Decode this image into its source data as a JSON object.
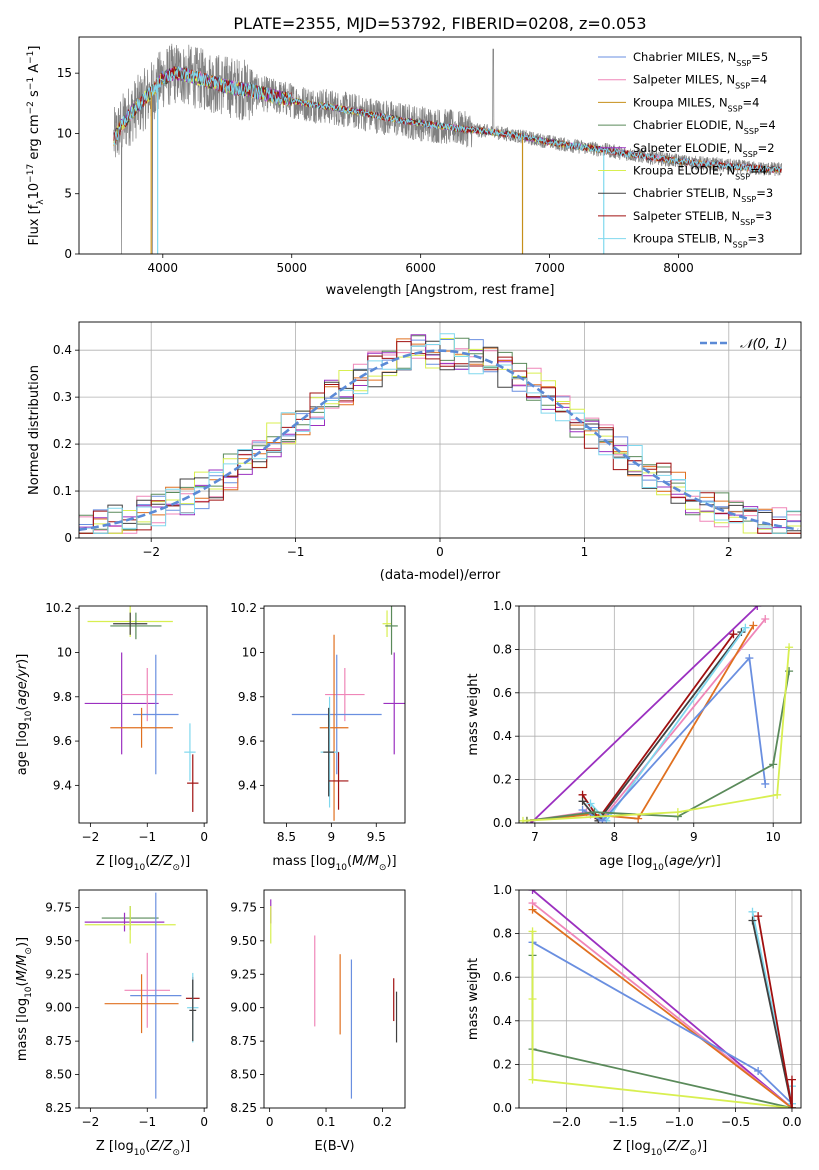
{
  "figure": {
    "title": "PLATE=2355, MJD=53792, FIBERID=0208, z=0.053"
  },
  "colors": {
    "Chabrier MILES": "#6a8fe0",
    "Salpeter MILES": "#ef86b8",
    "Kroupa MILES": "#c68f1a",
    "Chabrier ELODIE": "#5a8a5a",
    "Salpeter ELODIE": "#9b30c0",
    "Kroupa ELODIE": "#d8ef50",
    "Chabrier STELIB": "#404040",
    "Salpeter STELIB": "#a01010",
    "Kroupa STELIB": "#80d8ee",
    "orange": "#e07020",
    "data": "#808080",
    "gaussian": "#5b8ad6"
  },
  "chart_data": [
    {
      "id": "spectrum",
      "type": "line",
      "xlabel": "wavelength [Angstrom, rest frame]",
      "xlim": [
        3350,
        8950
      ],
      "ylim": [
        0,
        18
      ],
      "xticks": [
        4000,
        5000,
        6000,
        7000,
        8000
      ],
      "yticks": [
        0,
        5,
        10,
        15
      ],
      "legend_position": "top-right",
      "legend": [
        {
          "label": "Chabrier MILES, N",
          "sub": "SSP",
          "tail": "=5",
          "color": "#6a8fe0"
        },
        {
          "label": "Salpeter MILES, N",
          "sub": "SSP",
          "tail": "=4",
          "color": "#ef86b8"
        },
        {
          "label": "Kroupa MILES, N",
          "sub": "SSP",
          "tail": "=4",
          "color": "#c68f1a"
        },
        {
          "label": "Chabrier ELODIE, N",
          "sub": "SSP",
          "tail": "=4",
          "color": "#5a8a5a"
        },
        {
          "label": "Salpeter ELODIE, N",
          "sub": "SSP",
          "tail": "=2",
          "color": "#9b30c0"
        },
        {
          "label": "Kroupa ELODIE, N",
          "sub": "SSP",
          "tail": "=4",
          "color": "#d8ef50"
        },
        {
          "label": "Chabrier STELIB, N",
          "sub": "SSP",
          "tail": "=3",
          "color": "#404040"
        },
        {
          "label": "Salpeter STELIB, N",
          "sub": "SSP",
          "tail": "=3",
          "color": "#a01010"
        },
        {
          "label": "Kroupa STELIB, N",
          "sub": "SSP",
          "tail": "=3",
          "color": "#80d8ee"
        }
      ],
      "continuum": {
        "x": [
          3620,
          3700,
          3800,
          3900,
          4000,
          4100,
          4200,
          4300,
          4400,
          4500,
          4700,
          4900,
          5100,
          5300,
          5500,
          5700,
          5900,
          6100,
          6300,
          6500,
          6700,
          6900,
          7100,
          7300,
          7450,
          7600,
          7800,
          8000,
          8200,
          8400,
          8600,
          8800
        ],
        "y": [
          9.5,
          11.0,
          12.2,
          13.3,
          14.6,
          15.0,
          14.8,
          14.5,
          14.2,
          13.9,
          13.5,
          13.0,
          12.5,
          12.2,
          11.8,
          11.4,
          11.0,
          10.7,
          10.4,
          10.2,
          9.9,
          9.5,
          9.1,
          8.8,
          8.6,
          8.3,
          8.0,
          7.7,
          7.5,
          7.3,
          7.1,
          7.0
        ]
      },
      "model_drops": [
        {
          "x": 3910,
          "color": "#c68f1a"
        },
        {
          "x": 3960,
          "color": "#80d8ee"
        },
        {
          "x": 6790,
          "color": "#c68f1a"
        },
        {
          "x": 7420,
          "color": "#80d8ee"
        }
      ],
      "data_drops_x": [
        3680,
        3920
      ]
    },
    {
      "id": "residuals",
      "type": "line",
      "xlabel": "(data-model)/error",
      "ylabel": "Normed distribution",
      "xlim": [
        -2.5,
        2.5
      ],
      "ylim": [
        0,
        0.46
      ],
      "xticks": [
        -2,
        -1,
        0,
        1,
        2
      ],
      "yticks": [
        0.0,
        0.1,
        0.2,
        0.3,
        0.4
      ],
      "grid": true,
      "legend_position": "top-right",
      "legend_label": "N(0, 1)",
      "gaussian": {
        "mean": 0,
        "sigma": 1,
        "style": "dashed"
      },
      "bin_width": 0.1
    },
    {
      "id": "z-age",
      "type": "scatter",
      "xlabel": "Z [log10(Z/Z☉)]",
      "ylabel": "age [log10(age/yr)]",
      "xlim": [
        -2.2,
        0.05
      ],
      "ylim": [
        9.23,
        10.21
      ],
      "xticks": [
        -2,
        -1,
        0
      ],
      "yticks": [
        9.4,
        9.6,
        9.8,
        10.0,
        10.2
      ],
      "points": [
        {
          "x": -1.3,
          "y": 10.14,
          "xerr": 0.75,
          "yerr": 0.07,
          "color": "#d8ef50"
        },
        {
          "x": -1.2,
          "y": 10.12,
          "xerr": 0.45,
          "yerr": 0.06,
          "color": "#5a8a5a"
        },
        {
          "x": -1.3,
          "y": 10.13,
          "xerr": 0.3,
          "yerr": 0.05,
          "color": "#404040"
        },
        {
          "x": -1.45,
          "y": 9.77,
          "xerr": 0.65,
          "yerr": 0.23,
          "color": "#9b30c0"
        },
        {
          "x": -1.0,
          "y": 9.81,
          "xerr": 0.45,
          "yerr": 0.12,
          "color": "#ef86b8"
        },
        {
          "x": -0.85,
          "y": 9.72,
          "xerr": 0.4,
          "yerr": 0.27,
          "color": "#6a8fe0"
        },
        {
          "x": -1.1,
          "y": 9.66,
          "xerr": 0.55,
          "yerr": 0.09,
          "color": "#e07020"
        },
        {
          "x": -0.25,
          "y": 9.55,
          "xerr": 0.1,
          "yerr": 0.13,
          "color": "#80d8ee"
        },
        {
          "x": -0.2,
          "y": 9.41,
          "xerr": 0.1,
          "yerr": 0.13,
          "color": "#a01010"
        }
      ]
    },
    {
      "id": "mass-age",
      "type": "scatter",
      "xlabel": "mass [log10(M/M☉)]",
      "xlim": [
        8.25,
        9.82
      ],
      "ylim": [
        9.23,
        10.21
      ],
      "xticks": [
        8.5,
        9.0,
        9.5
      ],
      "yticks": [
        9.4,
        9.6,
        9.8,
        10.0,
        10.2
      ],
      "points": [
        {
          "x": 9.62,
          "y": 10.13,
          "xerr": 0.05,
          "yerr": 0.06,
          "color": "#d8ef50"
        },
        {
          "x": 9.67,
          "y": 10.12,
          "xerr": 0.07,
          "yerr": 0.13,
          "color": "#5a8a5a"
        },
        {
          "x": 9.7,
          "y": 9.77,
          "xerr": 0.12,
          "yerr": 0.23,
          "color": "#9b30c0"
        },
        {
          "x": 9.15,
          "y": 9.81,
          "xerr": 0.22,
          "yerr": 0.12,
          "color": "#ef86b8"
        },
        {
          "x": 9.06,
          "y": 9.72,
          "xerr": 0.5,
          "yerr": 0.27,
          "color": "#6a8fe0"
        },
        {
          "x": 9.03,
          "y": 9.66,
          "xerr": 0.16,
          "yerr": 0.42,
          "color": "#e07020"
        },
        {
          "x": 8.98,
          "y": 9.55,
          "xerr": 0.1,
          "yerr": 0.25,
          "color": "#80d8ee"
        },
        {
          "x": 9.08,
          "y": 9.42,
          "xerr": 0.11,
          "yerr": 0.13,
          "color": "#a01010"
        },
        {
          "x": 8.97,
          "y": 9.55,
          "xerr": 0.06,
          "yerr": 0.2,
          "color": "#404040"
        }
      ]
    },
    {
      "id": "age-weight",
      "type": "line",
      "xlabel": "age [log10(age/yr)]",
      "ylabel": "mass weight",
      "xlim": [
        6.8,
        10.35
      ],
      "ylim": [
        0,
        1
      ],
      "xticks": [
        7,
        8,
        9,
        10
      ],
      "yticks": [
        0.0,
        0.2,
        0.4,
        0.6,
        0.8,
        1.0
      ],
      "grid": true,
      "series": [
        {
          "color": "#9b30c0",
          "x": [
            6.95,
            9.8
          ],
          "y": [
            0.0,
            1.0
          ]
        },
        {
          "color": "#ef86b8",
          "x": [
            6.9,
            7.65,
            7.85,
            9.9
          ],
          "y": [
            0.01,
            0.05,
            0.02,
            0.94
          ]
        },
        {
          "color": "#e07020",
          "x": [
            6.9,
            7.7,
            8.3,
            9.75
          ],
          "y": [
            0.01,
            0.04,
            0.02,
            0.91
          ]
        },
        {
          "color": "#a01010",
          "x": [
            7.6,
            7.8,
            9.5
          ],
          "y": [
            0.13,
            0.02,
            0.87
          ]
        },
        {
          "color": "#404040",
          "x": [
            7.6,
            7.8,
            9.6
          ],
          "y": [
            0.1,
            0.01,
            0.88
          ]
        },
        {
          "color": "#80d8ee",
          "x": [
            7.7,
            7.9,
            9.65
          ],
          "y": [
            0.09,
            0.01,
            0.9
          ]
        },
        {
          "color": "#6a8fe0",
          "x": [
            7.6,
            7.85,
            9.7,
            9.9
          ],
          "y": [
            0.06,
            0.01,
            0.76,
            0.18
          ]
        },
        {
          "color": "#5a8a5a",
          "x": [
            6.9,
            7.75,
            8.8,
            10.0,
            10.2
          ],
          "y": [
            0.01,
            0.05,
            0.03,
            0.27,
            0.7
          ]
        },
        {
          "color": "#d8ef50",
          "x": [
            6.85,
            8.8,
            10.05,
            10.2
          ],
          "y": [
            0.01,
            0.05,
            0.13,
            0.81
          ]
        }
      ]
    },
    {
      "id": "z-mass",
      "type": "scatter",
      "xlabel": "Z [log10(Z/Z☉)]",
      "ylabel": "mass [log10(M/M☉)]",
      "xlim": [
        -2.2,
        0.05
      ],
      "ylim": [
        8.25,
        9.88
      ],
      "xticks": [
        -2,
        -1,
        0
      ],
      "yticks": [
        8.25,
        8.5,
        8.75,
        9.0,
        9.25,
        9.5,
        9.75
      ],
      "points": [
        {
          "x": -1.3,
          "y": 9.67,
          "xerr": 0.5,
          "yerr": 0.09,
          "color": "#5a8a5a"
        },
        {
          "x": -1.4,
          "y": 9.64,
          "xerr": 0.7,
          "yerr": 0.07,
          "color": "#9b30c0"
        },
        {
          "x": -1.3,
          "y": 9.62,
          "xerr": 0.8,
          "yerr": 0.14,
          "color": "#d8ef50"
        },
        {
          "x": -1.0,
          "y": 9.13,
          "xerr": 0.4,
          "yerr": 0.28,
          "color": "#ef86b8"
        },
        {
          "x": -0.85,
          "y": 9.09,
          "xerr": 0.45,
          "yerr": 0.77,
          "color": "#6a8fe0"
        },
        {
          "x": -1.1,
          "y": 9.03,
          "xerr": 0.65,
          "yerr": 0.22,
          "color": "#e07020"
        },
        {
          "x": -0.2,
          "y": 9.07,
          "xerr": 0.12,
          "yerr": 0.16,
          "color": "#a01010"
        },
        {
          "x": -0.2,
          "y": 9.0,
          "xerr": 0.1,
          "yerr": 0.26,
          "color": "#80d8ee"
        },
        {
          "x": -0.2,
          "y": 8.98,
          "xerr": 0.06,
          "yerr": 0.23,
          "color": "#404040"
        }
      ]
    },
    {
      "id": "ebv-mass",
      "type": "scatter",
      "xlabel": "E(B-V)",
      "xlim": [
        -0.01,
        0.24
      ],
      "ylim": [
        8.25,
        9.88
      ],
      "xticks": [
        0.0,
        0.1,
        0.2
      ],
      "yticks": [
        8.25,
        8.5,
        8.75,
        9.0,
        9.25,
        9.5,
        9.75
      ],
      "points": [
        {
          "x": 0.002,
          "y": 9.72,
          "yerr": 0.09,
          "color": "#9b30c0"
        },
        {
          "x": 0.002,
          "y": 9.62,
          "yerr": 0.14,
          "color": "#d8ef50"
        },
        {
          "x": 0.08,
          "y": 9.2,
          "yerr": 0.34,
          "color": "#ef86b8"
        },
        {
          "x": 0.145,
          "y": 8.84,
          "yerr": 0.52,
          "color": "#6a8fe0"
        },
        {
          "x": 0.125,
          "y": 9.1,
          "yerr": 0.3,
          "color": "#e07020"
        },
        {
          "x": 0.22,
          "y": 9.06,
          "yerr": 0.16,
          "color": "#a01010"
        },
        {
          "x": 0.225,
          "y": 8.93,
          "yerr": 0.19,
          "color": "#404040"
        }
      ]
    },
    {
      "id": "z-weight",
      "type": "line",
      "xlabel": "Z [log10(Z/Z☉)]",
      "ylabel": "mass weight",
      "xlim": [
        -2.42,
        0.08
      ],
      "ylim": [
        0,
        1
      ],
      "xticks": [
        -2.0,
        -1.5,
        -1.0,
        -0.5,
        0.0
      ],
      "yticks": [
        0.0,
        0.2,
        0.4,
        0.6,
        0.8,
        1.0
      ],
      "grid": true,
      "series": [
        {
          "color": "#9b30c0",
          "x": [
            -2.3,
            0.0
          ],
          "y": [
            1.0,
            0.0
          ]
        },
        {
          "color": "#ef86b8",
          "x": [
            -2.3,
            0.0
          ],
          "y": [
            0.94,
            0.0
          ]
        },
        {
          "color": "#e07020",
          "x": [
            -2.3,
            0.0
          ],
          "y": [
            0.91,
            0.0
          ]
        },
        {
          "color": "#6a8fe0",
          "x": [
            -2.3,
            -0.3,
            0.0
          ],
          "y": [
            0.76,
            0.17,
            0.02
          ]
        },
        {
          "color": "#5a8a5a",
          "x": [
            -2.3,
            -2.3,
            0.0
          ],
          "y": [
            0.7,
            0.27,
            0.0
          ]
        },
        {
          "color": "#d8ef50",
          "x": [
            -2.3,
            -2.3,
            -2.3,
            0.0
          ],
          "y": [
            0.81,
            0.5,
            0.13,
            0.0
          ]
        },
        {
          "color": "#80d8ee",
          "x": [
            -0.35,
            0.0,
            0.0
          ],
          "y": [
            0.9,
            0.02,
            0.1
          ]
        },
        {
          "color": "#404040",
          "x": [
            -0.35,
            0.0
          ],
          "y": [
            0.86,
            0.0
          ]
        },
        {
          "color": "#a01010",
          "x": [
            -0.3,
            0.0,
            0.0
          ],
          "y": [
            0.88,
            0.0,
            0.13
          ]
        }
      ]
    }
  ]
}
